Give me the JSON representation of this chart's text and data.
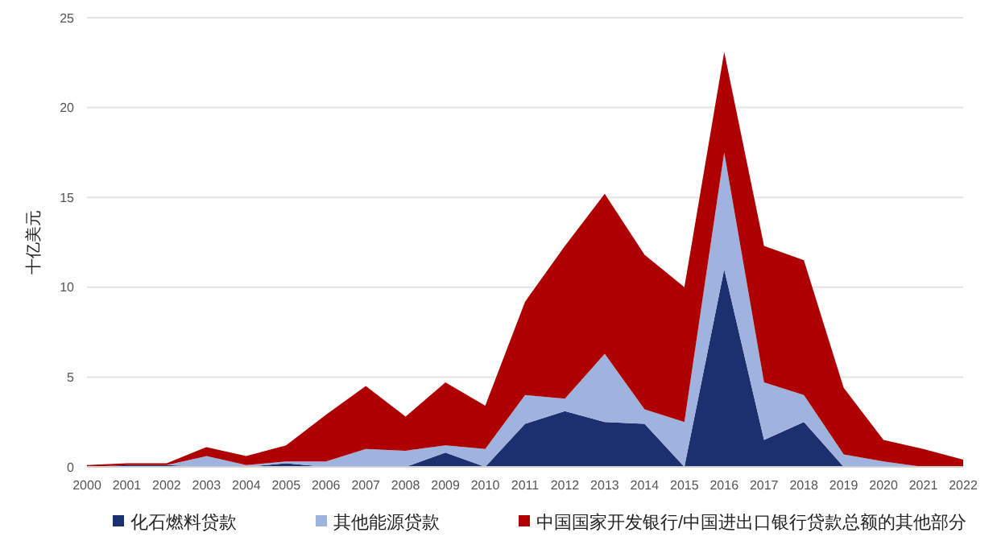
{
  "chart_data": {
    "type": "area",
    "stacked": true,
    "ylabel": "十亿美元",
    "x": [
      2000,
      2001,
      2002,
      2003,
      2004,
      2005,
      2006,
      2007,
      2008,
      2009,
      2010,
      2011,
      2012,
      2013,
      2014,
      2015,
      2016,
      2017,
      2018,
      2019,
      2020,
      2021,
      2022
    ],
    "xlim": [
      2000,
      2022
    ],
    "xticks": [
      2000,
      2001,
      2002,
      2003,
      2004,
      2005,
      2006,
      2007,
      2008,
      2009,
      2010,
      2011,
      2012,
      2013,
      2014,
      2015,
      2016,
      2017,
      2018,
      2019,
      2020,
      2021,
      2022
    ],
    "ylim": [
      0,
      25
    ],
    "yticks": [
      0,
      5,
      10,
      15,
      20,
      25
    ],
    "grid": "y",
    "legend": "bottom",
    "series": [
      {
        "name": "化石燃料贷款",
        "color": "#1c2f6e",
        "values": [
          0,
          0.1,
          0.1,
          0,
          0,
          0.2,
          0,
          0,
          0,
          0.8,
          0,
          2.4,
          3.1,
          2.5,
          2.4,
          0,
          11,
          1.5,
          2.5,
          0,
          0,
          0,
          0
        ]
      },
      {
        "name": "其他能源贷款",
        "color": "#9fb3df",
        "values": [
          0,
          0,
          0,
          0.6,
          0.1,
          0.1,
          0.3,
          1.0,
          0.9,
          0.4,
          1.0,
          1.6,
          0.7,
          3.8,
          0.8,
          2.5,
          6.5,
          3.2,
          1.5,
          0.7,
          0.3,
          0,
          0
        ]
      },
      {
        "name": "中国国家开发银行/中国进出口银行贷款总额的其他部分",
        "color": "#ae0000",
        "values": [
          0.1,
          0.1,
          0.1,
          0.5,
          0.5,
          0.9,
          2.6,
          3.5,
          1.9,
          3.5,
          2.4,
          5.2,
          8.5,
          8.9,
          8.6,
          7.5,
          5.6,
          7.6,
          7.5,
          3.7,
          1.2,
          1.0,
          0.4
        ]
      }
    ]
  }
}
